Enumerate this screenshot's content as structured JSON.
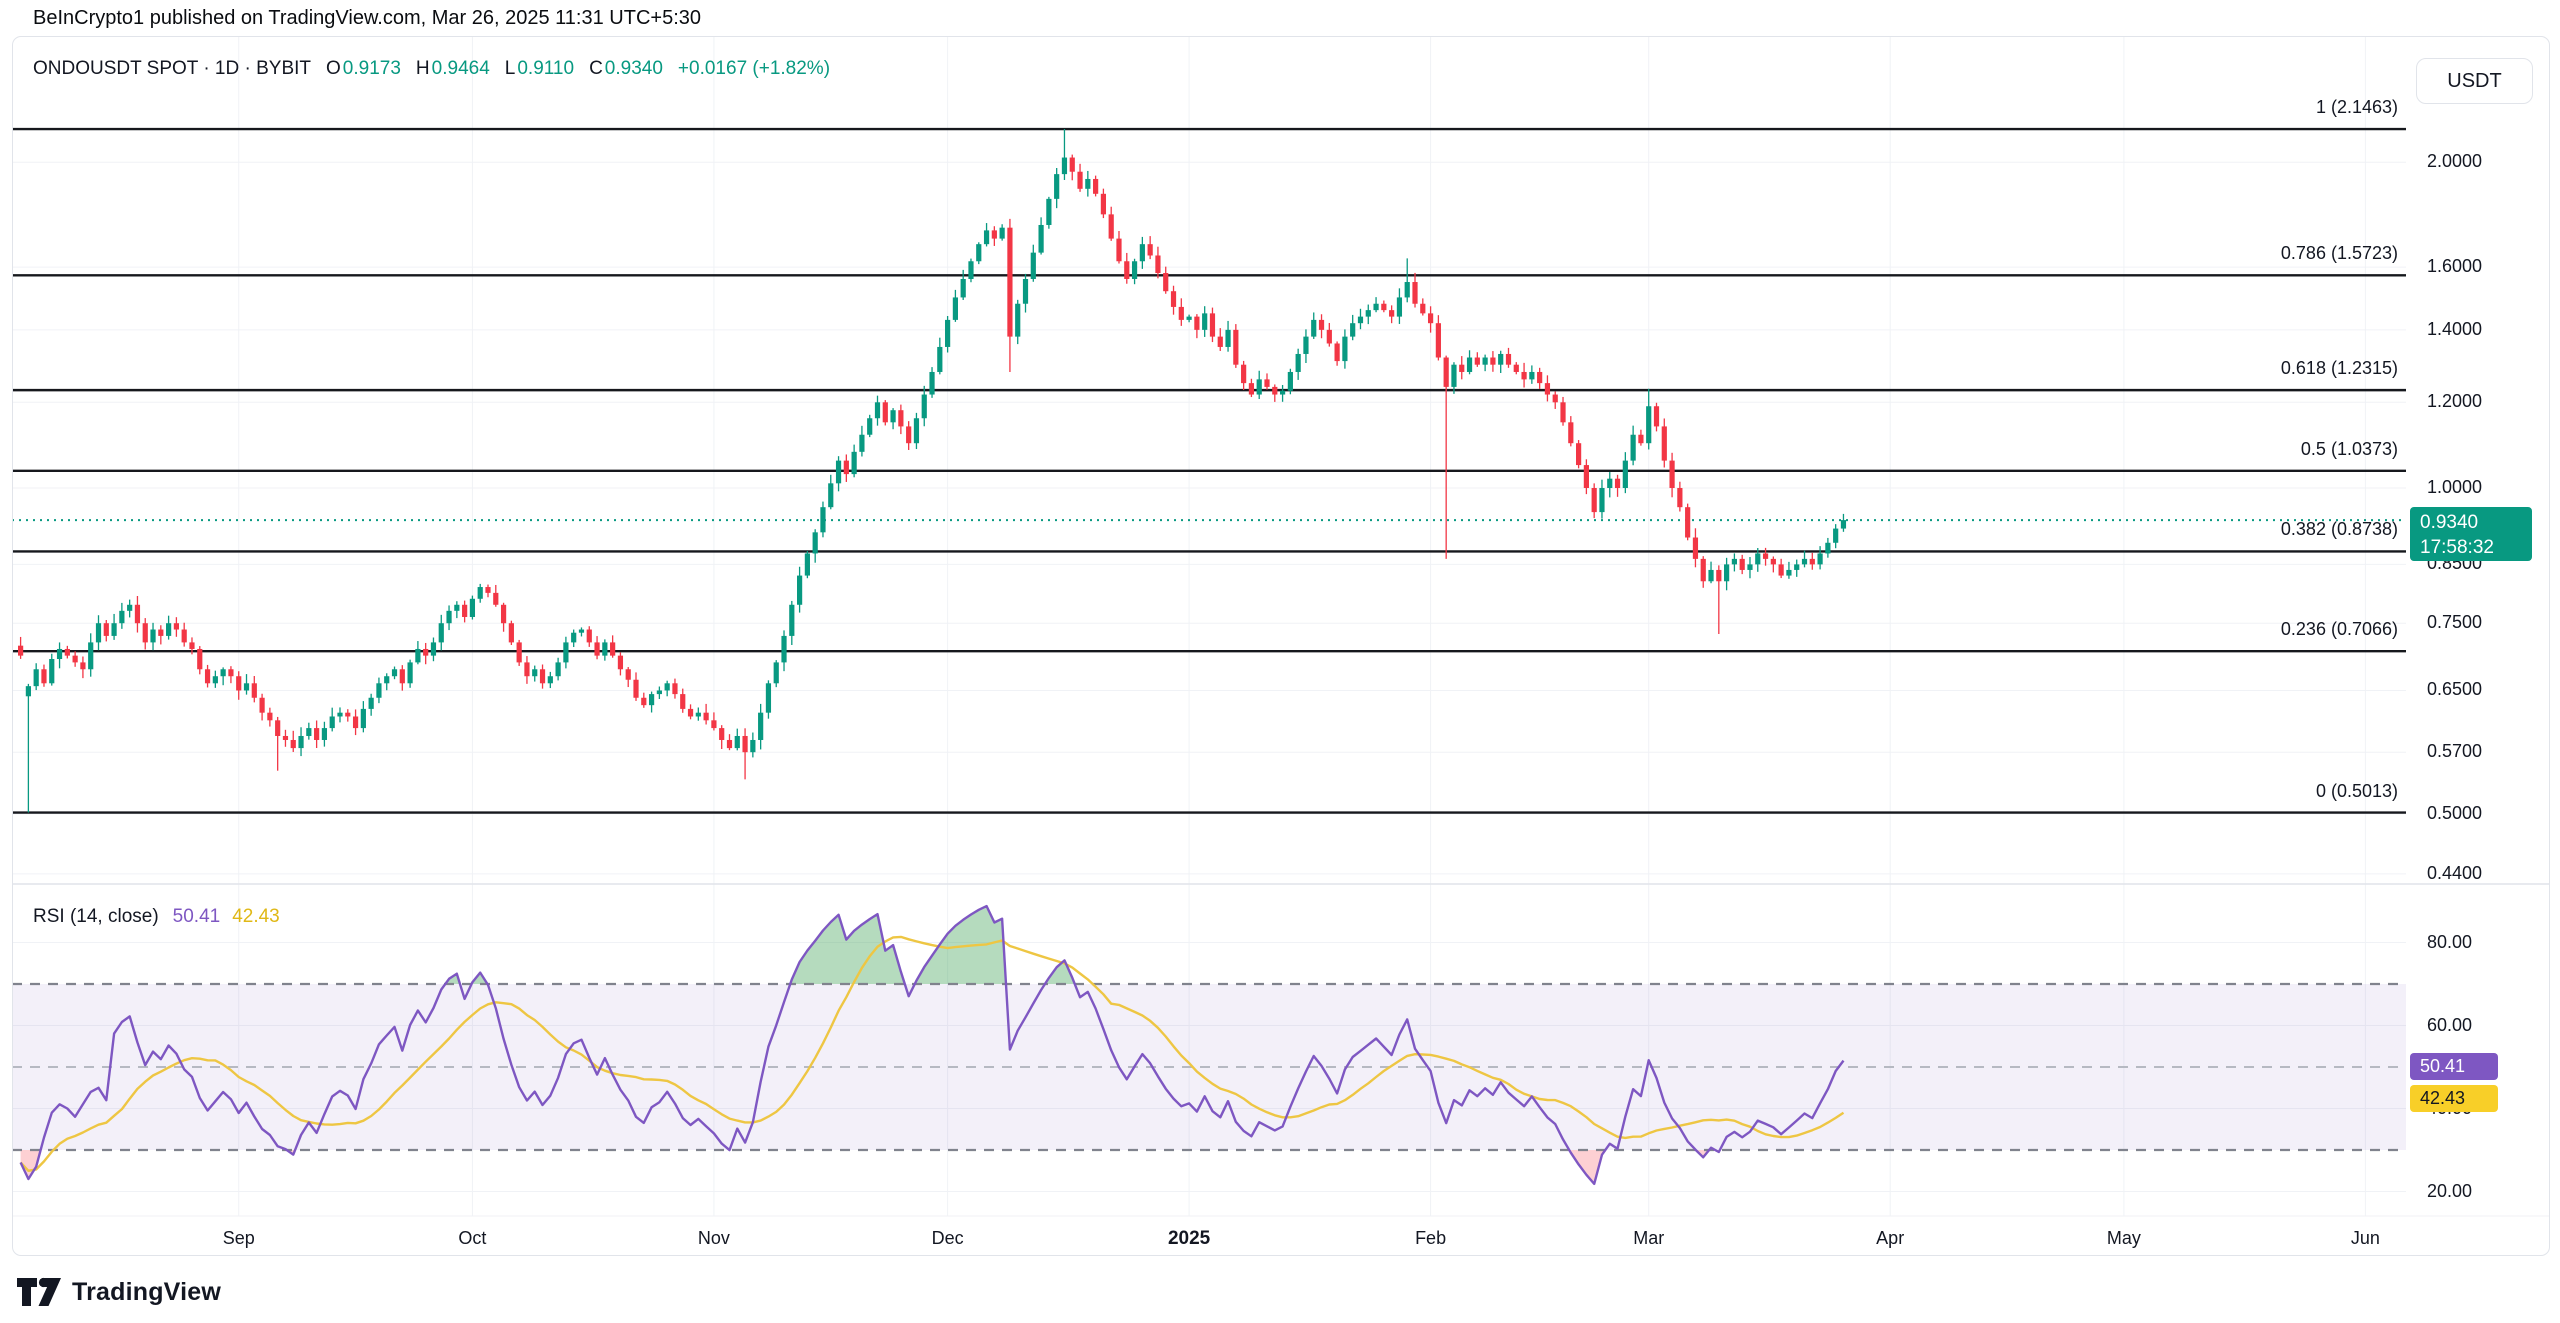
{
  "attribution": "BeInCrypto1 published on TradingView.com, Mar 26, 2025 11:31 UTC+5:30",
  "header": {
    "title": "ONDOUSDT SPOT · 1D · BYBIT",
    "ohlc": [
      {
        "label": "O",
        "value": "0.9173"
      },
      {
        "label": "H",
        "value": "0.9464"
      },
      {
        "label": "L",
        "value": "0.9110"
      },
      {
        "label": "C",
        "value": "0.9340"
      }
    ],
    "change": "+0.0167 (+1.82%)"
  },
  "rsi_label": {
    "title": "RSI (14, close)",
    "rsi_value": "50.41",
    "ma_value": "42.43"
  },
  "axis": {
    "currency_button": "USDT",
    "price_badge": {
      "price": "0.9340",
      "countdown": "17:58:32"
    },
    "rsi_badges": {
      "rsi": "50.41",
      "ma": "42.43"
    }
  },
  "footer": {
    "brand": "TradingView"
  },
  "colors": {
    "up": "#089981",
    "down": "#f23645",
    "fib_line": "#16181d",
    "current_price_line": "#089981",
    "rsi_line": "#7e57c2",
    "rsi_ma_line": "#eec643",
    "rsi_band_fill": "rgba(126,87,194,0.09)",
    "rsi_level_line": "#80838d",
    "rsi_mid_line": "#b6b9c2",
    "overbought_fill": "rgba(60,160,85,0.38)",
    "oversold_fill": "rgba(250,100,110,0.30)",
    "grid": "#f0f2f6",
    "separator": "#e1e4ea"
  },
  "chart_data": {
    "type": "candlestick",
    "title": "ONDOUSDT SPOT · 1D · BYBIT",
    "price_scale": "log",
    "price_axis_range": [
      0.42,
      2.6
    ],
    "rsi_axis_range": [
      14,
      93
    ],
    "current_price": 0.934,
    "fib_levels": [
      {
        "label": "1 (2.1463)",
        "price": 2.1463
      },
      {
        "label": "0.786 (1.5723)",
        "price": 1.5723
      },
      {
        "label": "0.618 (1.2315)",
        "price": 1.2315
      },
      {
        "label": "0.5 (1.0373)",
        "price": 1.0373
      },
      {
        "label": "0.382 (0.8738)",
        "price": 0.8738
      },
      {
        "label": "0.236 (0.7066)",
        "price": 0.7066
      },
      {
        "label": "0 (0.5013)",
        "price": 0.5013
      }
    ],
    "price_axis_ticks": [
      {
        "label": "2.0000",
        "value": 2.0
      },
      {
        "label": "1.6000",
        "value": 1.6
      },
      {
        "label": "1.4000",
        "value": 1.4
      },
      {
        "label": "1.2000",
        "value": 1.2
      },
      {
        "label": "1.0000",
        "value": 1.0
      },
      {
        "label": "0.8500",
        "value": 0.85
      },
      {
        "label": "0.7500",
        "value": 0.75
      },
      {
        "label": "0.6500",
        "value": 0.65
      },
      {
        "label": "0.5700",
        "value": 0.57
      },
      {
        "label": "0.5000",
        "value": 0.5
      },
      {
        "label": "0.4400",
        "value": 0.44
      }
    ],
    "months": [
      {
        "label": "Sep",
        "day": 28,
        "bold": false
      },
      {
        "label": "Oct",
        "day": 58,
        "bold": false
      },
      {
        "label": "Nov",
        "day": 89,
        "bold": false
      },
      {
        "label": "Dec",
        "day": 119,
        "bold": false
      },
      {
        "label": "2025",
        "day": 150,
        "bold": true
      },
      {
        "label": "Feb",
        "day": 181,
        "bold": false
      },
      {
        "label": "Mar",
        "day": 209,
        "bold": false
      },
      {
        "label": "Apr",
        "day": 240,
        "bold": false
      },
      {
        "label": "May",
        "day": 270,
        "bold": false
      },
      {
        "label": "Jun",
        "day": 301,
        "bold": false
      }
    ],
    "candles": {
      "start_date": "2024-08-04",
      "interval": "1D",
      "first_open": 0.715,
      "closes": [
        0.7,
        0.656,
        0.68,
        0.66,
        0.695,
        0.71,
        0.7,
        0.69,
        0.68,
        0.72,
        0.75,
        0.73,
        0.75,
        0.77,
        0.78,
        0.75,
        0.72,
        0.74,
        0.73,
        0.75,
        0.74,
        0.72,
        0.71,
        0.68,
        0.66,
        0.67,
        0.68,
        0.67,
        0.65,
        0.66,
        0.64,
        0.62,
        0.61,
        0.59,
        0.585,
        0.575,
        0.59,
        0.6,
        0.585,
        0.6,
        0.615,
        0.62,
        0.615,
        0.6,
        0.625,
        0.64,
        0.66,
        0.67,
        0.68,
        0.66,
        0.69,
        0.71,
        0.7,
        0.72,
        0.75,
        0.77,
        0.78,
        0.76,
        0.79,
        0.81,
        0.8,
        0.78,
        0.75,
        0.72,
        0.69,
        0.67,
        0.68,
        0.66,
        0.67,
        0.69,
        0.72,
        0.735,
        0.74,
        0.72,
        0.7,
        0.72,
        0.7,
        0.68,
        0.665,
        0.64,
        0.63,
        0.645,
        0.65,
        0.66,
        0.645,
        0.625,
        0.615,
        0.62,
        0.61,
        0.6,
        0.585,
        0.575,
        0.59,
        0.57,
        0.585,
        0.62,
        0.66,
        0.69,
        0.73,
        0.78,
        0.83,
        0.87,
        0.91,
        0.96,
        1.01,
        1.06,
        1.03,
        1.08,
        1.12,
        1.16,
        1.2,
        1.15,
        1.18,
        1.14,
        1.1,
        1.16,
        1.22,
        1.28,
        1.35,
        1.43,
        1.5,
        1.56,
        1.62,
        1.68,
        1.73,
        1.7,
        1.74,
        1.38,
        1.48,
        1.56,
        1.65,
        1.75,
        1.85,
        1.95,
        2.02,
        1.96,
        1.89,
        1.93,
        1.87,
        1.79,
        1.7,
        1.62,
        1.56,
        1.62,
        1.68,
        1.64,
        1.58,
        1.52,
        1.47,
        1.43,
        1.44,
        1.4,
        1.45,
        1.38,
        1.35,
        1.4,
        1.3,
        1.25,
        1.22,
        1.26,
        1.24,
        1.22,
        1.23,
        1.28,
        1.33,
        1.38,
        1.43,
        1.4,
        1.36,
        1.31,
        1.38,
        1.42,
        1.44,
        1.46,
        1.48,
        1.46,
        1.44,
        1.5,
        1.55,
        1.48,
        1.45,
        1.42,
        1.32,
        1.24,
        1.3,
        1.28,
        1.32,
        1.3,
        1.32,
        1.3,
        1.33,
        1.3,
        1.28,
        1.26,
        1.28,
        1.25,
        1.22,
        1.2,
        1.15,
        1.1,
        1.05,
        1.0,
        0.95,
        1.0,
        1.02,
        1.0,
        1.06,
        1.12,
        1.1,
        1.19,
        1.14,
        1.06,
        1.0,
        0.96,
        0.9,
        0.86,
        0.82,
        0.84,
        0.82,
        0.85,
        0.86,
        0.84,
        0.85,
        0.87,
        0.86,
        0.85,
        0.83,
        0.84,
        0.85,
        0.86,
        0.85,
        0.87,
        0.89,
        0.9173,
        0.934
      ],
      "overrides": {
        "1": {
          "o": 0.642,
          "l": 0.5013
        },
        "33": {
          "l": 0.548
        },
        "93": {
          "l": 0.538
        },
        "127": {
          "l": 1.28
        },
        "134": {
          "h": 2.1463
        },
        "178": {
          "h": 1.63
        },
        "183": {
          "l": 0.86
        },
        "209": {
          "h": 1.235
        },
        "218": {
          "l": 0.733
        },
        "234": {
          "o": 0.9173,
          "h": 0.9464,
          "l": 0.911,
          "c": 0.934
        }
      }
    },
    "rsi": {
      "period": 14,
      "source": "close",
      "seed": [
        27,
        23,
        26,
        33,
        39,
        41,
        40,
        38,
        41,
        44,
        45,
        42
      ],
      "levels": [
        70,
        50,
        30
      ],
      "axis_ticks": [
        {
          "label": "80.00",
          "value": 80
        },
        {
          "label": "60.00",
          "value": 60
        },
        {
          "label": "40.00",
          "value": 40
        },
        {
          "label": "20.00",
          "value": 20
        }
      ],
      "last_value": 50.41,
      "ma_last_value": 42.43
    }
  }
}
